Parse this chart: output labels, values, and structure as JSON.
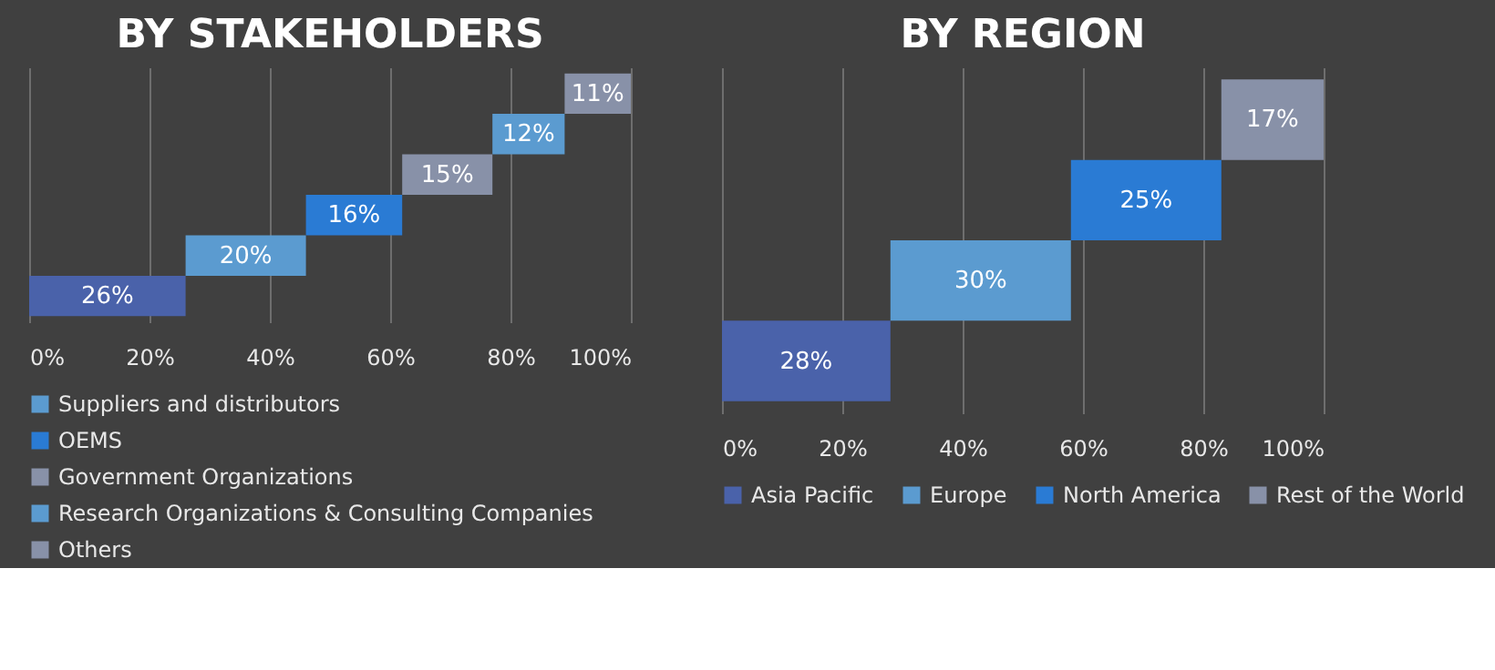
{
  "chart_data": [
    {
      "type": "bar",
      "title": "BY STAKEHOLDERS",
      "orientation": "horizontal",
      "categories": [
        null,
        null,
        null,
        null,
        null,
        null
      ],
      "series": [
        {
          "color": "#4a62aa",
          "values": [
            null,
            null,
            null,
            null,
            null,
            26
          ],
          "base": [
            null,
            null,
            null,
            null,
            null,
            0
          ],
          "value_labels": [
            null,
            null,
            null,
            null,
            null,
            "26%"
          ]
        },
        {
          "name": "Suppliers and distributors",
          "color": "#5b9bd0",
          "values": [
            null,
            null,
            null,
            null,
            20,
            null
          ],
          "base": [
            null,
            null,
            null,
            null,
            26,
            null
          ],
          "value_labels": [
            null,
            null,
            null,
            null,
            "20%",
            null
          ]
        },
        {
          "name": "OEMS",
          "color": "#2a7bd4",
          "values": [
            null,
            null,
            null,
            16,
            null,
            null
          ],
          "base": [
            null,
            null,
            null,
            46,
            null,
            null
          ],
          "value_labels": [
            null,
            null,
            null,
            "16%",
            null,
            null
          ]
        },
        {
          "name": "Government Organizations",
          "color": "#8891a8",
          "values": [
            null,
            null,
            15,
            null,
            null,
            null
          ],
          "base": [
            null,
            null,
            62,
            null,
            null,
            null
          ],
          "value_labels": [
            null,
            null,
            "15%",
            null,
            null,
            null
          ]
        },
        {
          "name": "Research Organizations & Consulting Companies",
          "color": "#5b9bd0",
          "values": [
            null,
            12,
            null,
            null,
            null,
            null
          ],
          "base": [
            null,
            77,
            null,
            null,
            null,
            null
          ],
          "value_labels": [
            null,
            "12%",
            null,
            null,
            null,
            null
          ]
        },
        {
          "name": "Others",
          "color": "#8891a8",
          "values": [
            11,
            null,
            null,
            null,
            null,
            null
          ],
          "base": [
            89,
            null,
            null,
            null,
            null,
            null
          ],
          "value_labels": [
            "11%",
            null,
            null,
            null,
            null,
            null
          ]
        }
      ],
      "xlim": [
        0,
        100
      ],
      "xticks": [
        {
          "value": 0,
          "label": "0%"
        },
        {
          "value": 20,
          "label": "20%"
        },
        {
          "value": 40,
          "label": "40%"
        },
        {
          "value": 60,
          "label": "60%"
        },
        {
          "value": 80,
          "label": "80%"
        },
        {
          "value": 100,
          "label": "100%"
        }
      ],
      "grid": "x",
      "legend": "bottom"
    },
    {
      "type": "bar",
      "title": "BY REGION",
      "orientation": "horizontal",
      "categories": [
        null,
        null,
        null,
        null
      ],
      "series": [
        {
          "name": "Asia Pacific",
          "color": "#4a62aa",
          "values": [
            null,
            null,
            null,
            28
          ],
          "base": [
            null,
            null,
            null,
            0
          ],
          "value_labels": [
            null,
            null,
            null,
            "28%"
          ]
        },
        {
          "name": "Europe",
          "color": "#5b9bd0",
          "values": [
            null,
            null,
            30,
            null
          ],
          "base": [
            null,
            null,
            28,
            null
          ],
          "value_labels": [
            null,
            null,
            "30%",
            null
          ]
        },
        {
          "name": "North America",
          "color": "#2a7bd4",
          "values": [
            null,
            25,
            null,
            null
          ],
          "base": [
            null,
            58,
            null,
            null
          ],
          "value_labels": [
            null,
            "25%",
            null,
            null
          ]
        },
        {
          "name": "Rest of the World",
          "color": "#8891a8",
          "values": [
            17,
            null,
            null,
            null
          ],
          "base": [
            83,
            null,
            null,
            null
          ],
          "value_labels": [
            "17%",
            null,
            null,
            null
          ]
        }
      ],
      "xlim": [
        0,
        100
      ],
      "xticks": [
        {
          "value": 0,
          "label": "0%"
        },
        {
          "value": 20,
          "label": "20%"
        },
        {
          "value": 40,
          "label": "40%"
        },
        {
          "value": 60,
          "label": "60%"
        },
        {
          "value": 80,
          "label": "80%"
        },
        {
          "value": 100,
          "label": "100%"
        }
      ],
      "grid": "x",
      "legend": "bottom"
    }
  ]
}
